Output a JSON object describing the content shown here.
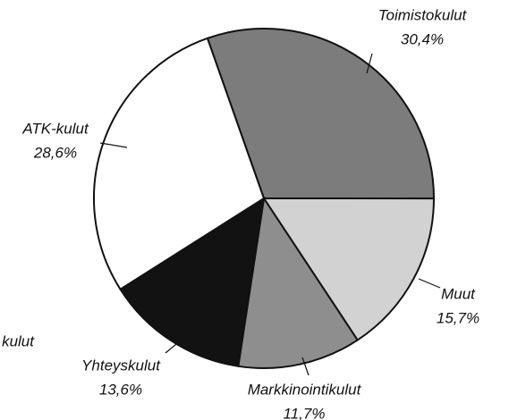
{
  "chart_data": {
    "type": "pie",
    "categories": [
      "Toimistokulut",
      "Muut",
      "Markkinointikulut",
      "Yhteyskulut",
      "ATK-kulut"
    ],
    "values": [
      30.4,
      15.7,
      11.7,
      13.6,
      28.6
    ],
    "value_labels": [
      "30,4%",
      "15,7%",
      "11,7%",
      "13,6%",
      "28,6%"
    ],
    "colors": [
      "#7c7c7c",
      "#d2d2d2",
      "#8e8e8e",
      "#121212",
      "#ffffff"
    ],
    "annotations": [
      "kulut"
    ]
  }
}
